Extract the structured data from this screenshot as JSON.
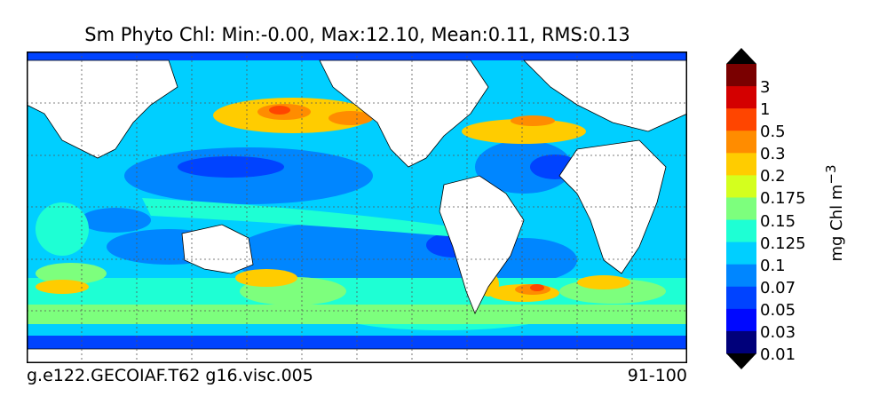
{
  "title": "Sm Phyto Chl: Min:-0.00, Max:12.10, Mean:0.11, RMS:0.13",
  "footer": {
    "run_id": "g.e122.GECOIAF.T62 g16.visc.005",
    "years": "91-100"
  },
  "colorbar": {
    "unit_label": "mg Chl m",
    "unit_exponent": "−3",
    "ticks": [
      "3",
      "1",
      "0.5",
      "0.3",
      "0.2",
      "0.175",
      "0.15",
      "0.125",
      "0.1",
      "0.07",
      "0.05",
      "0.03",
      "0.01"
    ],
    "colors": [
      "#7a0000",
      "#d40000",
      "#ff4500",
      "#ff8c00",
      "#ffcc00",
      "#d4ff1e",
      "#7dff7d",
      "#1effd4",
      "#00cfff",
      "#0086ff",
      "#0043ff",
      "#0008ff",
      "#00007a"
    ]
  },
  "palette": {
    "land": "#ffffff",
    "grid": "#555555",
    "frame": "#000000"
  }
}
